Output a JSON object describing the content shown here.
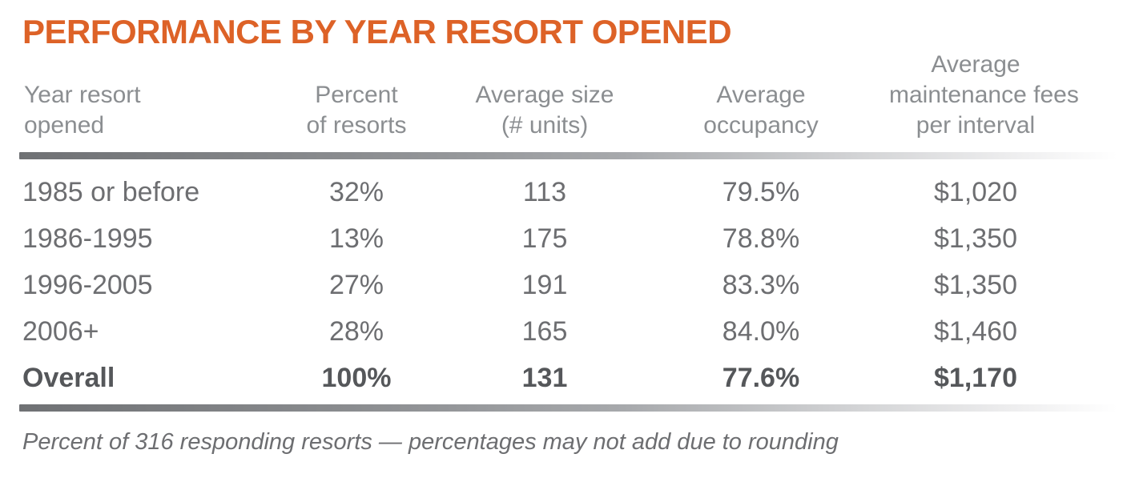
{
  "title": "PERFORMANCE BY YEAR RESORT OPENED",
  "chart_data": {
    "type": "table",
    "title": "PERFORMANCE BY YEAR RESORT OPENED",
    "columns": [
      "Year resort opened",
      "Percent of resorts",
      "Average size (# units)",
      "Average occupancy",
      "Average maintenance fees per interval"
    ],
    "rows": [
      [
        "1985 or before",
        "32%",
        "113",
        "79.5%",
        "$1,020"
      ],
      [
        "1986-1995",
        "13%",
        "175",
        "78.8%",
        "$1,350"
      ],
      [
        "1996-2005",
        "27%",
        "191",
        "83.3%",
        "$1,350"
      ],
      [
        "2006+",
        "28%",
        "165",
        "84.0%",
        "$1,460"
      ],
      [
        "Overall",
        "100%",
        "131",
        "77.6%",
        "$1,170"
      ]
    ],
    "footnote": "Percent of 316 responding resorts — percentages may not add due to rounding",
    "sample_size": "316",
    "emphasized_row": "Overall"
  },
  "header_lines": [
    [
      "Year resort",
      "opened"
    ],
    [
      "Percent",
      "of resorts"
    ],
    [
      "Average size",
      "(# units)"
    ],
    [
      "Average",
      "occupancy"
    ],
    [
      "Average",
      "maintenance fees",
      "per interval"
    ]
  ],
  "colors": {
    "accent_orange": "#dd6227",
    "header_gray": "#8b8e91",
    "body_gray": "#6d6e71",
    "overall_dark_gray": "#55575a",
    "rule_gradient_start": "#6f7174",
    "rule_gradient_end": "#ffffff",
    "background": "#ffffff"
  }
}
